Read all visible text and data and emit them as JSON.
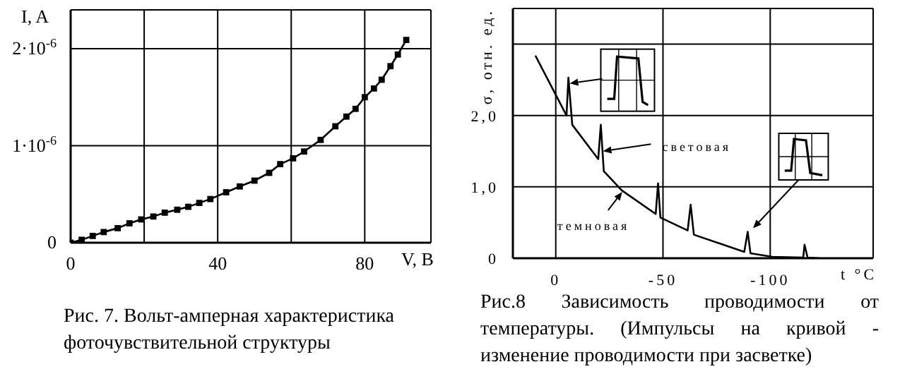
{
  "chart_data": [
    {
      "type": "line",
      "title": "Рис. 7. Вольт-амперная характеристика фоточувствительной структуры",
      "xlabel": "V, B",
      "ylabel": "I, A",
      "x": [
        0,
        3,
        6,
        9,
        12.8,
        16,
        19.2,
        22.5,
        25.6,
        29,
        32,
        35,
        38,
        42.3,
        46,
        50,
        54,
        57,
        60.5,
        63.5,
        68,
        72,
        75,
        77.5,
        80,
        82.5,
        84.6,
        87,
        89,
        91.3
      ],
      "values": [
        0,
        3e-08,
        7e-08,
        1.1e-07,
        1.5e-07,
        2e-07,
        2.4e-07,
        2.7e-07,
        3.1e-07,
        3.4e-07,
        3.7e-07,
        4.1e-07,
        4.5e-07,
        5.2e-07,
        5.8e-07,
        6.4e-07,
        7.2e-07,
        8.1e-07,
        8.7e-07,
        9.4e-07,
        1.06e-06,
        1.2e-06,
        1.3e-06,
        1.38e-06,
        1.5e-06,
        1.59e-06,
        1.68e-06,
        1.82e-06,
        1.94e-06,
        2.09e-06
      ],
      "color": "#000000",
      "xlim": [
        0,
        98
      ],
      "ylim": [
        0,
        2.4e-06
      ],
      "xticks": [
        0,
        {
          "value": 20,
          "label": null
        },
        40,
        {
          "value": 60,
          "label": null
        },
        80
      ],
      "yticks": [
        0,
        {
          "value": 1e-06,
          "label": "1·10$^{-6}$"
        },
        {
          "value": 2e-06,
          "label": "2·10$^{-6}$"
        }
      ],
      "grid": true,
      "marker": "square",
      "line_style": "solid"
    },
    {
      "type": "line",
      "title": "Рис.8 Зависимость проводимости от температуры. (Импульсы на кривой - изменение проводимости при засветке)",
      "xlabel": "t °C",
      "ylabel": "σ, отн. ед.",
      "x": [
        9.5,
        -5,
        -5.9,
        -7.7,
        -19.8,
        -21,
        -22.4,
        -30.8,
        -46.6,
        -47.7,
        -48.8,
        -61.5,
        -62.9,
        -64.4,
        -87.9,
        -89.5,
        -90.8,
        -101,
        -115.4,
        -116,
        -117.4,
        -123
      ],
      "values": [
        2.84,
        2.0,
        2.53,
        1.87,
        1.39,
        1.87,
        1.22,
        0.95,
        0.62,
        1.05,
        0.57,
        0.39,
        0.75,
        0.33,
        0.09,
        0.37,
        0.07,
        0.02,
        0.01,
        0.19,
        0.01,
        0
      ],
      "color": "#000000",
      "xlim": [
        20,
        -148
      ],
      "ylim": [
        0,
        3.5
      ],
      "xticks": [
        0,
        -50,
        -100
      ],
      "yticks": [
        0,
        {
          "value": 1,
          "label": "1,0"
        },
        {
          "value": 2,
          "label": "2,0"
        },
        {
          "value": 3,
          "label": null
        }
      ],
      "grid": true,
      "marker": "none",
      "line_style": "solid",
      "annotations": [
        "световая",
        "темновая"
      ]
    }
  ]
}
